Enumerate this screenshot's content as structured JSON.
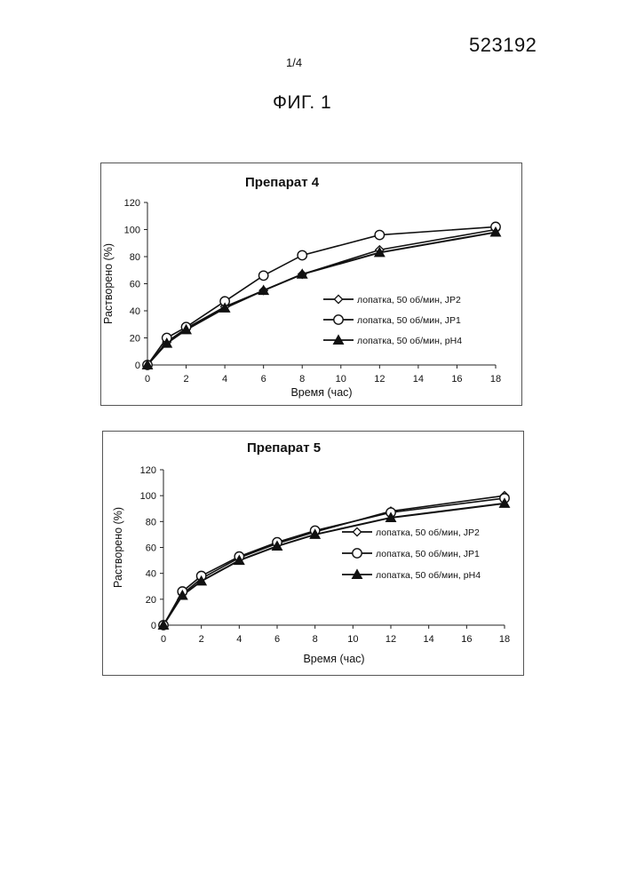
{
  "header": {
    "patent_number": "523192",
    "sheet": "1/4",
    "figure": "ФИГ. 1"
  },
  "chart_data": [
    {
      "type": "line",
      "title": "Препарат 4",
      "xlabel": "Время (час)",
      "ylabel": "Растворено (%)",
      "xlim": [
        0,
        18
      ],
      "ylim": [
        0,
        120
      ],
      "xticks": [
        0,
        2,
        4,
        6,
        8,
        10,
        12,
        14,
        16,
        18
      ],
      "yticks": [
        0,
        20,
        40,
        60,
        80,
        100,
        120
      ],
      "grid": false,
      "legend_position": "right",
      "series": [
        {
          "name": "лопатка, 50 об/мин, JP2",
          "marker": "diamond",
          "x": [
            0,
            1,
            2,
            4,
            6,
            8,
            12,
            18
          ],
          "y": [
            0,
            17,
            27,
            43,
            55,
            67,
            85,
            100
          ]
        },
        {
          "name": "лопатка, 50 об/мин, JP1",
          "marker": "circle",
          "x": [
            0,
            1,
            2,
            4,
            6,
            8,
            12,
            18
          ],
          "y": [
            0,
            20,
            28,
            47,
            66,
            81,
            96,
            102
          ]
        },
        {
          "name": "лопатка, 50 об/мин, pH4",
          "marker": "triangle",
          "x": [
            0,
            1,
            2,
            4,
            6,
            8,
            12,
            18
          ],
          "y": [
            0,
            16,
            26,
            42,
            55,
            67,
            83,
            98
          ]
        }
      ]
    },
    {
      "type": "line",
      "title": "Препарат 5",
      "xlabel": "Время (час)",
      "ylabel": "Растворено (%)",
      "xlim": [
        0,
        18
      ],
      "ylim": [
        0,
        120
      ],
      "xticks": [
        0,
        2,
        4,
        6,
        8,
        10,
        12,
        14,
        16,
        18
      ],
      "yticks": [
        0,
        20,
        40,
        60,
        80,
        100,
        120
      ],
      "grid": false,
      "legend_position": "right",
      "series": [
        {
          "name": "лопатка, 50 об/мин, JP2",
          "marker": "diamond",
          "x": [
            0,
            1,
            2,
            4,
            6,
            8,
            12,
            18
          ],
          "y": [
            0,
            24,
            36,
            52,
            63,
            72,
            88,
            100
          ]
        },
        {
          "name": "лопатка, 50 об/мин, JP1",
          "marker": "circle",
          "x": [
            0,
            1,
            2,
            4,
            6,
            8,
            12,
            18
          ],
          "y": [
            0,
            26,
            38,
            53,
            64,
            73,
            87,
            98
          ]
        },
        {
          "name": "лопатка, 50 об/мин, pH4",
          "marker": "triangle",
          "x": [
            0,
            1,
            2,
            4,
            6,
            8,
            12,
            18
          ],
          "y": [
            0,
            23,
            34,
            50,
            61,
            70,
            83,
            94
          ]
        }
      ]
    }
  ]
}
